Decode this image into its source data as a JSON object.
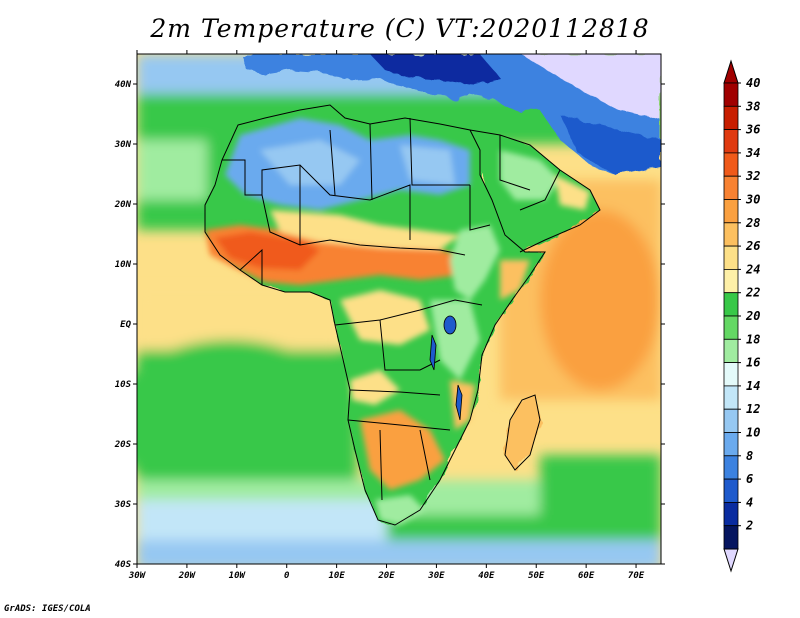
{
  "title": "2m Temperature (C) VT:2020112818",
  "footer": "GrADS: IGES/COLA",
  "map": {
    "lon_labels": [
      "30W",
      "20W",
      "10W",
      "0",
      "10E",
      "20E",
      "30E",
      "40E",
      "50E",
      "60E",
      "70E"
    ],
    "lat_labels": [
      "40N",
      "30N",
      "20N",
      "10N",
      "EQ",
      "10S",
      "20S",
      "30S",
      "40S"
    ],
    "lon_range": [
      -30,
      75
    ],
    "lat_range": [
      -40,
      45
    ]
  },
  "colorbar": {
    "labels": [
      "40",
      "38",
      "36",
      "34",
      "32",
      "30",
      "28",
      "26",
      "24",
      "22",
      "20",
      "18",
      "16",
      "14",
      "12",
      "10",
      "8",
      "6",
      "4",
      "2"
    ],
    "colors": [
      "#a00000",
      "#c81e00",
      "#e03a10",
      "#f05a1a",
      "#f88232",
      "#faa040",
      "#fcc060",
      "#fde088",
      "#fef0a8",
      "#38c848",
      "#64d864",
      "#a0eca0",
      "#e4fafa",
      "#c2e6f8",
      "#96c8f2",
      "#6aaaee",
      "#3c82e0",
      "#1e5acc",
      "#0a2ca0",
      "#061660"
    ],
    "top_color": "#a00000",
    "bottom_color": "#e0d8ff"
  },
  "legend_colors": {
    "ocean_tropical": "#fde088",
    "ocean_green": "#38c848",
    "ocean_light": "#a0eca0",
    "ocean_cold": "#96c8f2",
    "sahara": "#6aaaee",
    "sahel_hot": "#f88232",
    "land_green": "#38c848",
    "highland": "#a0eca0",
    "europe_cold": "#0a2ca0"
  }
}
